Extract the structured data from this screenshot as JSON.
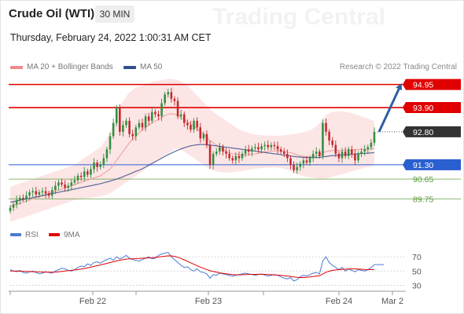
{
  "header": {
    "title": "Crude Oil (WTI)",
    "timeframe": "30 MIN",
    "datetime": "Thursday, February 24, 2022 1:00:31 AM CET",
    "watermark": "Trading Central"
  },
  "legend": {
    "items": [
      {
        "label": "MA 20 + Bollinger Bands",
        "color": "#f08a8a"
      },
      {
        "label": "MA 50",
        "color": "#2f4f8f"
      }
    ],
    "copyright": "Research © 2022 Trading Central"
  },
  "colors": {
    "candle_up": "#2f8f3f",
    "candle_down": "#c2272d",
    "ma20": "#f0a0a0",
    "ma50": "#1f3f7f",
    "band": "#fbdcdc",
    "resistance": "#e00000",
    "support_blue": "#2a5fd0",
    "support_green": "#5a9a3a",
    "price": "#333333",
    "rsi": "#4a7bd5",
    "rsi_ma": "#e00000",
    "arrow": "#2f5fa0"
  },
  "chart_data": [
    {
      "type": "candlestick",
      "title": "",
      "x_labels": [
        "Feb 22",
        "Feb 23",
        "Feb 24",
        "Mar 2"
      ],
      "ylim": [
        88.8,
        95.4
      ],
      "levels": [
        {
          "value": 94.95,
          "label": "94.95",
          "kind": "resistance"
        },
        {
          "value": 93.9,
          "label": "93.90",
          "kind": "resistance"
        },
        {
          "value": 92.8,
          "label": "92.80",
          "kind": "last_price"
        },
        {
          "value": 91.3,
          "label": "91.30",
          "kind": "pivot"
        },
        {
          "value": 90.65,
          "label": "90.65",
          "kind": "support"
        },
        {
          "value": 89.75,
          "label": "89.75",
          "kind": "support"
        }
      ],
      "close": [
        89.35,
        89.5,
        89.7,
        89.8,
        89.75,
        89.9,
        90.05,
        90.1,
        89.95,
        90.05,
        90.1,
        90.0,
        89.9,
        90.15,
        90.35,
        90.5,
        90.4,
        90.25,
        90.35,
        90.5,
        90.6,
        90.8,
        90.75,
        91.0,
        90.85,
        91.1,
        91.4,
        91.2,
        91.3,
        91.6,
        92.0,
        92.6,
        93.2,
        93.9,
        92.8,
        93.1,
        93.3,
        92.7,
        92.6,
        93.0,
        93.2,
        93.0,
        93.5,
        93.3,
        93.7,
        93.6,
        93.5,
        94.1,
        94.5,
        94.6,
        94.3,
        94.2,
        93.5,
        93.6,
        93.2,
        93.1,
        92.9,
        93.3,
        93.0,
        92.5,
        92.7,
        92.2,
        91.3,
        91.8,
        91.9,
        92.1,
        91.9,
        91.8,
        91.6,
        91.5,
        91.7,
        91.6,
        91.8,
        92.0,
        91.9,
        92.05,
        92.1,
        92.0,
        92.15,
        92.2,
        92.1,
        92.2,
        92.15,
        92.0,
        91.9,
        91.8,
        91.6,
        91.3,
        91.05,
        91.2,
        91.35,
        91.5,
        91.4,
        91.6,
        91.8,
        91.9,
        91.7,
        93.2,
        92.8,
        92.4,
        92.2,
        91.8,
        91.6,
        91.9,
        91.7,
        92.0,
        91.8,
        91.5,
        91.8,
        91.9,
        92.0,
        92.1,
        92.3,
        92.8
      ],
      "ma20": [
        89.4,
        89.45,
        89.5,
        89.55,
        89.6,
        89.65,
        89.7,
        89.75,
        89.8,
        89.85,
        89.9,
        89.95,
        90.0,
        90.05,
        90.1,
        90.15,
        90.2,
        90.25,
        90.3,
        90.35,
        90.4,
        90.45,
        90.5,
        90.55,
        90.6,
        90.65,
        90.7,
        90.75,
        90.8,
        90.9,
        91.0,
        91.1,
        91.3,
        91.5,
        91.7,
        91.9,
        92.1,
        92.3,
        92.45,
        92.6,
        92.75,
        92.9,
        93.0,
        93.1,
        93.2,
        93.3,
        93.35,
        93.45,
        93.55,
        93.6,
        93.62,
        93.6,
        93.55,
        93.45,
        93.35,
        93.25,
        93.15,
        93.05,
        92.95,
        92.8,
        92.7,
        92.55,
        92.4,
        92.3,
        92.2,
        92.1,
        92.0,
        91.9,
        91.85,
        91.8,
        91.78,
        91.76,
        91.75,
        91.75,
        91.76,
        91.78,
        91.8,
        91.82,
        91.85,
        91.88,
        91.9,
        91.92,
        91.93,
        91.94,
        91.93,
        91.9,
        91.88,
        91.85,
        91.8,
        91.75,
        91.7,
        91.68,
        91.66,
        91.65,
        91.66,
        91.7,
        91.72,
        91.85,
        91.9,
        91.93,
        91.95,
        91.95,
        91.95,
        91.96,
        91.96,
        91.97,
        91.98,
        91.98,
        91.99,
        92.0,
        92.0,
        92.01,
        92.02,
        92.05
      ],
      "ma50": [
        89.6,
        89.63,
        89.66,
        89.69,
        89.72,
        89.75,
        89.78,
        89.81,
        89.84,
        89.87,
        89.9,
        89.93,
        89.96,
        89.99,
        90.02,
        90.05,
        90.08,
        90.11,
        90.14,
        90.17,
        90.2,
        90.23,
        90.26,
        90.29,
        90.32,
        90.35,
        90.38,
        90.41,
        90.44,
        90.48,
        90.52,
        90.56,
        90.6,
        90.65,
        90.7,
        90.76,
        90.82,
        90.88,
        90.94,
        91.0,
        91.06,
        91.12,
        91.2,
        91.28,
        91.36,
        91.44,
        91.52,
        91.6,
        91.68,
        91.76,
        91.83,
        91.9,
        91.96,
        92.02,
        92.07,
        92.12,
        92.16,
        92.19,
        92.21,
        92.22,
        92.22,
        92.21,
        92.2,
        92.18,
        92.16,
        92.14,
        92.12,
        92.1,
        92.08,
        92.06,
        92.04,
        92.02,
        92.0,
        91.98,
        91.96,
        91.94,
        91.92,
        91.9,
        91.88,
        91.86,
        91.84,
        91.82,
        91.8,
        91.78,
        91.76,
        91.74,
        91.72,
        91.7,
        91.68,
        91.66,
        91.65,
        91.64,
        91.63,
        91.63,
        91.63,
        91.63,
        91.64,
        91.66,
        91.68,
        91.7,
        91.72,
        91.73,
        91.74,
        91.75,
        91.76,
        91.77,
        91.78,
        91.79,
        91.8,
        91.81,
        91.82,
        91.83,
        91.84,
        91.85
      ],
      "band_upper": [
        90.3,
        90.35,
        90.4,
        90.45,
        90.5,
        90.55,
        90.6,
        90.65,
        90.7,
        90.75,
        90.8,
        90.85,
        90.9,
        90.95,
        91.0,
        91.05,
        91.1,
        91.15,
        91.2,
        91.25,
        91.3,
        91.4,
        91.5,
        91.6,
        91.7,
        91.8,
        91.9,
        92.0,
        92.1,
        92.3,
        92.5,
        92.8,
        93.1,
        93.5,
        93.9,
        94.2,
        94.4,
        94.6,
        94.7,
        94.8,
        94.85,
        94.9,
        94.95,
        95.0,
        95.05,
        95.1,
        95.12,
        95.15,
        95.18,
        95.2,
        95.2,
        95.18,
        95.15,
        95.1,
        95.0,
        94.9,
        94.75,
        94.6,
        94.45,
        94.3,
        94.15,
        94.0,
        93.85,
        93.7,
        93.6,
        93.5,
        93.4,
        93.3,
        93.2,
        93.1,
        93.0,
        92.9,
        92.85,
        92.8,
        92.75,
        92.7,
        92.68,
        92.66,
        92.65,
        92.64,
        92.63,
        92.62,
        92.62,
        92.62,
        92.63,
        92.64,
        92.66,
        92.68,
        92.7,
        92.72,
        92.75,
        92.78,
        92.82,
        92.88,
        92.95,
        93.05,
        93.2,
        93.4,
        93.55,
        93.65,
        93.7,
        93.72,
        93.73,
        93.72,
        93.7,
        93.68,
        93.65,
        93.6,
        93.55,
        93.5,
        93.45,
        93.4,
        93.35,
        93.3
      ],
      "band_lower": [
        88.7,
        88.75,
        88.8,
        88.85,
        88.9,
        88.95,
        89.0,
        89.05,
        89.1,
        89.15,
        89.2,
        89.25,
        89.3,
        89.35,
        89.4,
        89.45,
        89.5,
        89.55,
        89.6,
        89.65,
        89.7,
        89.72,
        89.74,
        89.76,
        89.78,
        89.8,
        89.82,
        89.84,
        89.86,
        89.9,
        89.95,
        90.0,
        90.1,
        90.2,
        90.3,
        90.4,
        90.5,
        90.6,
        90.7,
        90.8,
        90.9,
        91.0,
        91.1,
        91.2,
        91.3,
        91.4,
        91.5,
        91.6,
        91.7,
        91.8,
        91.9,
        92.0,
        92.05,
        92.0,
        91.9,
        91.8,
        91.7,
        91.6,
        91.5,
        91.4,
        91.3,
        91.2,
        91.1,
        91.05,
        91.0,
        90.98,
        90.96,
        90.95,
        90.95,
        90.96,
        90.98,
        91.0,
        91.02,
        91.05,
        91.08,
        91.1,
        91.12,
        91.14,
        91.15,
        91.16,
        91.17,
        91.18,
        91.18,
        91.17,
        91.15,
        91.12,
        91.08,
        91.0,
        90.92,
        90.86,
        90.82,
        90.78,
        90.75,
        90.72,
        90.7,
        90.68,
        90.66,
        90.66,
        90.68,
        90.72,
        90.76,
        90.8,
        90.84,
        90.88,
        90.92,
        90.96,
        91.0,
        91.04,
        91.08,
        91.12,
        91.16,
        91.2,
        91.24,
        91.28
      ]
    },
    {
      "type": "line",
      "title": "",
      "series": [
        {
          "name": "RSI",
          "color": "#4a7bd5",
          "values": [
            52,
            50,
            49,
            51,
            48,
            47,
            49,
            50,
            48,
            46,
            47,
            49,
            48,
            47,
            50,
            52,
            54,
            53,
            51,
            50,
            52,
            55,
            57,
            56,
            60,
            58,
            62,
            63,
            61,
            64,
            66,
            68,
            65,
            70,
            67,
            69,
            72,
            68,
            66,
            65,
            64,
            66,
            68,
            70,
            67,
            68,
            72,
            74,
            75,
            76,
            70,
            66,
            62,
            58,
            55,
            56,
            52,
            50,
            53,
            49,
            48,
            46,
            40,
            45,
            44,
            47,
            46,
            45,
            44,
            43,
            44,
            45,
            46,
            47,
            46,
            45,
            44,
            45,
            46,
            44,
            43,
            44,
            45,
            44,
            42,
            40,
            39,
            41,
            36,
            38,
            42,
            44,
            43,
            45,
            47,
            48,
            46,
            64,
            70,
            62,
            58,
            55,
            52,
            55,
            50,
            53,
            51,
            49,
            52,
            51,
            50,
            52,
            55,
            59
          ]
        },
        {
          "name": "9MA",
          "color": "#e00000",
          "values": [
            50,
            50,
            50,
            49.8,
            49.6,
            49.4,
            49.2,
            49.1,
            49,
            48.8,
            48.6,
            48.5,
            48.4,
            48.3,
            48.5,
            48.9,
            49.5,
            50.1,
            50.6,
            51,
            51.5,
            52.1,
            52.8,
            53.5,
            54.5,
            55.5,
            56.5,
            57.6,
            58.5,
            59.6,
            60.7,
            61.9,
            63,
            64.2,
            65.2,
            66,
            66.7,
            67,
            67.2,
            67.4,
            67.6,
            67.9,
            68.2,
            68.4,
            68.7,
            69,
            69.5,
            70.2,
            70.8,
            71.3,
            71.2,
            70.5,
            69.3,
            67.6,
            65.7,
            63.6,
            61.5,
            59.5,
            57.6,
            55.5,
            53.8,
            52.2,
            50.4,
            49.4,
            48.5,
            47.6,
            46.8,
            46.2,
            45.6,
            45.1,
            44.8,
            44.7,
            44.8,
            45,
            45.2,
            45.3,
            45.4,
            45.5,
            45.5,
            45.3,
            45.1,
            44.9,
            44.6,
            44.3,
            43.9,
            43.5,
            43,
            42.5,
            41.8,
            41.3,
            41,
            41,
            41.3,
            41.7,
            42.3,
            42.9,
            43.4,
            45.8,
            48.3,
            49.8,
            50.8,
            51.5,
            52,
            52.4,
            52.6,
            52.8,
            53,
            53,
            52.8,
            52.5,
            52.2,
            52,
            51.9,
            52.2
          ]
        }
      ],
      "ylim": [
        25,
        80
      ],
      "y_ticks": [
        "70",
        "50",
        "30"
      ],
      "legend": [
        "RSI",
        "9MA"
      ]
    }
  ]
}
